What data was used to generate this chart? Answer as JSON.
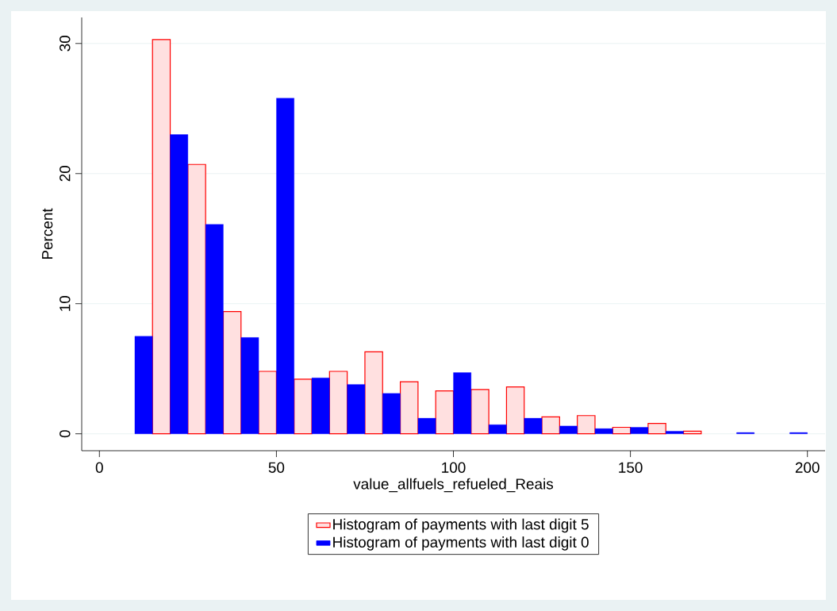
{
  "chart_data": {
    "type": "histogram",
    "xlabel": "value_allfuels_refueled_Reais",
    "ylabel": "Percent",
    "bins": [
      10,
      15,
      20,
      25,
      30,
      35,
      40,
      45,
      50,
      55,
      60,
      65,
      70,
      75,
      80,
      85,
      90,
      95,
      100,
      105,
      110,
      115,
      120,
      125,
      130,
      135,
      140,
      145,
      150,
      155,
      160,
      165,
      170,
      175,
      180,
      185,
      190,
      195,
      200
    ],
    "series": [
      {
        "name": "Histogram of payments with last digit 5",
        "color": "#ff0000",
        "values": [
          null,
          30.3,
          null,
          20.7,
          null,
          9.4,
          null,
          4.8,
          null,
          4.2,
          null,
          4.8,
          null,
          6.3,
          null,
          4.0,
          null,
          3.3,
          null,
          3.4,
          null,
          3.6,
          null,
          1.3,
          null,
          1.4,
          null,
          0.5,
          null,
          0.8,
          null,
          0.2,
          null,
          null,
          null,
          null,
          null,
          null
        ]
      },
      {
        "name": "Histogram of payments with last digit 0",
        "color": "#0000ff",
        "values": [
          7.5,
          null,
          23.0,
          null,
          16.1,
          null,
          7.4,
          null,
          25.8,
          null,
          4.3,
          null,
          3.8,
          null,
          3.1,
          null,
          1.2,
          null,
          4.7,
          null,
          0.7,
          null,
          1.2,
          null,
          0.6,
          null,
          0.4,
          null,
          0.5,
          null,
          0.2,
          null,
          null,
          null,
          0.1,
          null,
          null,
          0.1
        ]
      }
    ],
    "xlim": [
      -5,
      205
    ],
    "ylim": [
      -1.3,
      32
    ],
    "xticks": [
      0,
      50,
      100,
      150,
      200
    ],
    "yticks": [
      0,
      10,
      20,
      30
    ],
    "grid": "y",
    "legend": "bottom"
  }
}
